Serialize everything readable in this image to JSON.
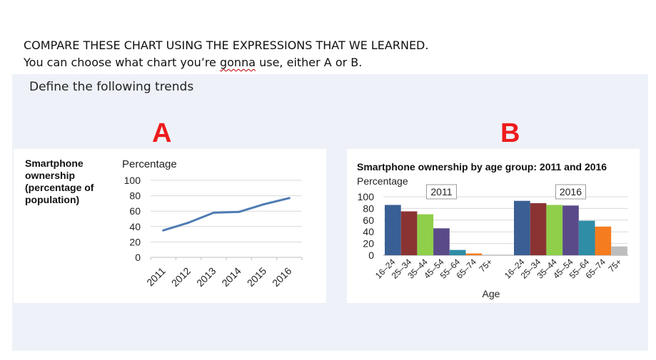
{
  "instructions": {
    "line1": "COMPARE THESE CHART USING THE EXPRESSIONS THAT WE LEARNED.",
    "line2_before": "You can choose what chart you’re ",
    "line2_squiggle": "gonna",
    "line2_after": " use, either A or B."
  },
  "panel": {
    "title": "Define the following trends"
  },
  "letters": {
    "a": "A",
    "b": "B"
  },
  "colors": {
    "line": "#4f7cb4",
    "grid": "#d9d9d9",
    "letter": "#ee1c1c",
    "bars": [
      "#3a5f95",
      "#8b3333",
      "#8fcf4a",
      "#5b4a8a",
      "#2f8da6",
      "#f57d1f",
      "#bdbdbd"
    ]
  },
  "chart_data": [
    {
      "type": "line",
      "title": "Smartphone ownership (percentage of population)",
      "ylabel": "Percentage",
      "xlabel": "",
      "categories": [
        "2011",
        "2012",
        "2013",
        "2014",
        "2015",
        "2016"
      ],
      "values": [
        35,
        45,
        58,
        59,
        69,
        77
      ],
      "ylim": [
        0,
        100
      ],
      "yticks": [
        "0",
        "20",
        "40",
        "60",
        "80",
        "100"
      ],
      "grid": true
    },
    {
      "type": "bar",
      "title": "Smartphone ownership by age group: 2011 and 2016",
      "ylabel": "Percentage",
      "xlabel": "Age",
      "ylim": [
        0,
        100
      ],
      "yticks": [
        "0",
        "20",
        "40",
        "60",
        "80",
        "100"
      ],
      "grid": true,
      "groups": [
        {
          "label": "2011",
          "categories": [
            "16–24",
            "25–34",
            "35–44",
            "45–54",
            "55–64",
            "65–74",
            "75+"
          ],
          "values": [
            86,
            75,
            70,
            46,
            9,
            3,
            0
          ]
        },
        {
          "label": "2016",
          "categories": [
            "16–24",
            "25–34",
            "35–44",
            "45–54",
            "55–64",
            "65–74",
            "75+"
          ],
          "values": [
            93,
            89,
            86,
            85,
            59,
            49,
            15
          ]
        }
      ]
    }
  ]
}
